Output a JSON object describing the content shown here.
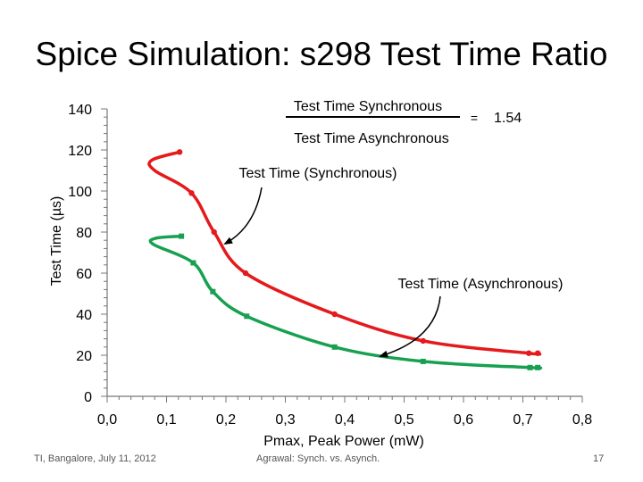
{
  "slide": {
    "title": "Spice Simulation: s298 Test Time Ratio",
    "footer_left": "TI, Bangalore, July 11, 2012",
    "footer_center": "Agrawal: Synch. vs. Asynch.",
    "footer_right": "17"
  },
  "colors": {
    "synchronous": "#e41a1c",
    "asynchronous": "#17a050"
  },
  "chart_data": {
    "type": "line",
    "xlabel": "Pmax, Peak Power (mW)",
    "ylabel": "Test Time (µs)",
    "xlim": [
      0,
      0.8
    ],
    "ylim": [
      0,
      140
    ],
    "x_ticks": [
      "0,0",
      "0,1",
      "0,2",
      "0,3",
      "0,4",
      "0,5",
      "0,6",
      "0,7",
      "0,8"
    ],
    "y_ticks": [
      "0",
      "20",
      "40",
      "60",
      "80",
      "100",
      "120",
      "140"
    ],
    "grid": false,
    "series": [
      {
        "name": "Test Time (Synchronous)",
        "points": [
          [
            0.122,
            119
          ],
          [
            0.075,
            115
          ],
          [
            0.08,
            110
          ],
          [
            0.142,
            99
          ],
          [
            0.18,
            80
          ],
          [
            0.233,
            60
          ],
          [
            0.383,
            40
          ],
          [
            0.532,
            27
          ],
          [
            0.71,
            21
          ],
          [
            0.725,
            21
          ]
        ]
      },
      {
        "name": "Test Time (Asynchronous)",
        "points": [
          [
            0.125,
            78
          ],
          [
            0.082,
            77
          ],
          [
            0.078,
            74
          ],
          [
            0.145,
            65
          ],
          [
            0.178,
            51
          ],
          [
            0.235,
            39
          ],
          [
            0.383,
            24
          ],
          [
            0.532,
            17
          ],
          [
            0.712,
            14
          ],
          [
            0.725,
            14
          ]
        ]
      }
    ],
    "annotations": {
      "ratio_numerator": "Test Time Synchronous",
      "ratio_denominator": "Test Time Asynchronous",
      "ratio_equals": "=",
      "ratio_value": "1.54",
      "sync_label": "Test Time (Synchronous)",
      "async_label": "Test Time (Asynchronous)"
    }
  }
}
